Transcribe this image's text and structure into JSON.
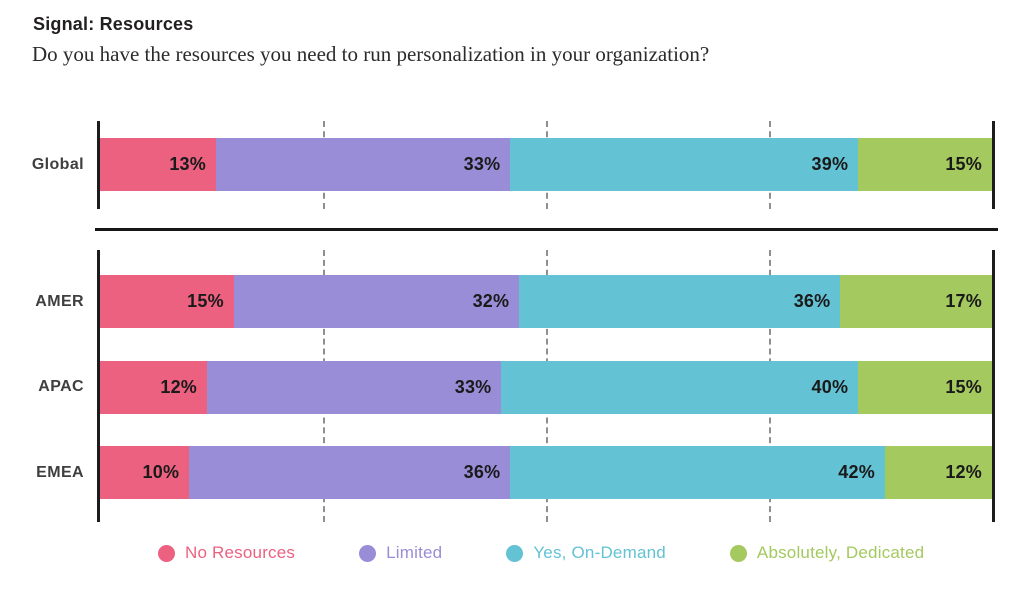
{
  "header": {
    "title": "Signal: Resources",
    "subtitle": "Do you have the resources you need to run personalization in your organization?"
  },
  "colors": {
    "no_resources": "#EC6180",
    "limited": "#9A8DD8",
    "yes_on_demand": "#63C2D4",
    "absolutely_dedicated": "#A4C95E",
    "axis": "#1c1c1c",
    "gridline": "#8f8f8f",
    "divider": "#161616",
    "value_label": "#1a1a1a"
  },
  "legend": [
    {
      "key": "no_resources",
      "label": "No Resources",
      "color": "#EC6180"
    },
    {
      "key": "limited",
      "label": "Limited",
      "color": "#9A8DD8"
    },
    {
      "key": "yes_on_demand",
      "label": "Yes, On-Demand",
      "color": "#63C2D4"
    },
    {
      "key": "absolutely_dedicated",
      "label": "Absolutely, Dedicated",
      "color": "#A4C95E"
    }
  ],
  "chart_data": {
    "type": "bar",
    "stacked": true,
    "orientation": "horizontal",
    "title": "Signal: Resources",
    "subtitle": "Do you have the resources you need to run personalization in your organization?",
    "categories": [
      "Global",
      "AMER",
      "APAC",
      "EMEA"
    ],
    "series": [
      {
        "key": "no_resources",
        "name": "No Resources",
        "color": "#EC6180",
        "values": [
          13,
          15,
          12,
          10
        ]
      },
      {
        "key": "limited",
        "name": "Limited",
        "color": "#9A8DD8",
        "values": [
          33,
          32,
          33,
          36
        ]
      },
      {
        "key": "yes_on_demand",
        "name": "Yes, On-Demand",
        "color": "#63C2D4",
        "values": [
          39,
          36,
          40,
          42
        ]
      },
      {
        "key": "absolutely_dedicated",
        "name": "Absolutely, Dedicated",
        "color": "#A4C95E",
        "values": [
          15,
          17,
          15,
          12
        ]
      }
    ],
    "value_suffix": "%",
    "xlim": [
      0,
      100
    ],
    "gridlines_percent": [
      25,
      50,
      75
    ],
    "grid": "dashed-vertical",
    "groups": [
      [
        "Global"
      ],
      [
        "AMER",
        "APAC",
        "EMEA"
      ]
    ],
    "legend_position": "bottom"
  }
}
